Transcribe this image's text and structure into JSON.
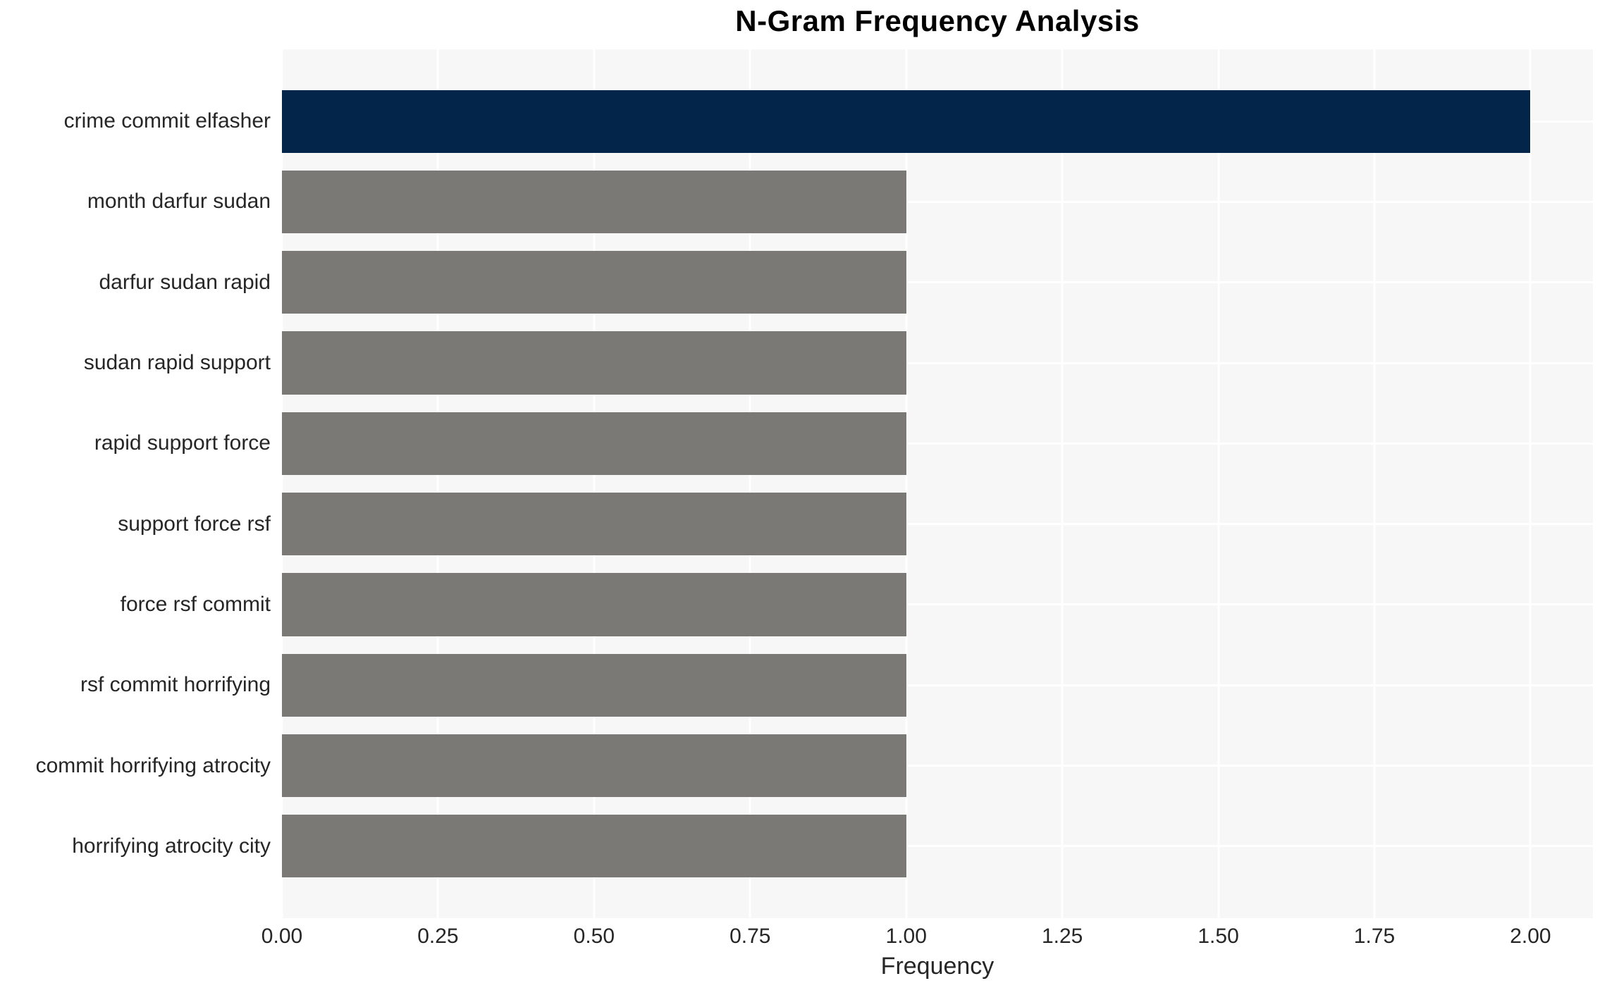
{
  "chart_data": {
    "type": "bar",
    "orientation": "horizontal",
    "title": "N-Gram Frequency Analysis",
    "categories": [
      "crime commit elfasher",
      "month darfur sudan",
      "darfur sudan rapid",
      "sudan rapid support",
      "rapid support force",
      "support force rsf",
      "force rsf commit",
      "rsf commit horrifying",
      "commit horrifying atrocity",
      "horrifying atrocity city"
    ],
    "values": [
      2,
      1,
      1,
      1,
      1,
      1,
      1,
      1,
      1,
      1
    ],
    "xlabel": "Frequency",
    "x_ticks": [
      "0.00",
      "0.25",
      "0.50",
      "0.75",
      "1.00",
      "1.25",
      "1.50",
      "1.75",
      "2.00"
    ],
    "xlim": [
      0,
      2.1
    ],
    "grid": "on",
    "legend": "none",
    "colors": {
      "highlight_bar": "#03254A",
      "default_bar": "#7A7975",
      "plot_background": "#F7F7F7",
      "gridline": "#FFFFFF",
      "tick_text": "#262626",
      "title_text": "#000000"
    }
  }
}
